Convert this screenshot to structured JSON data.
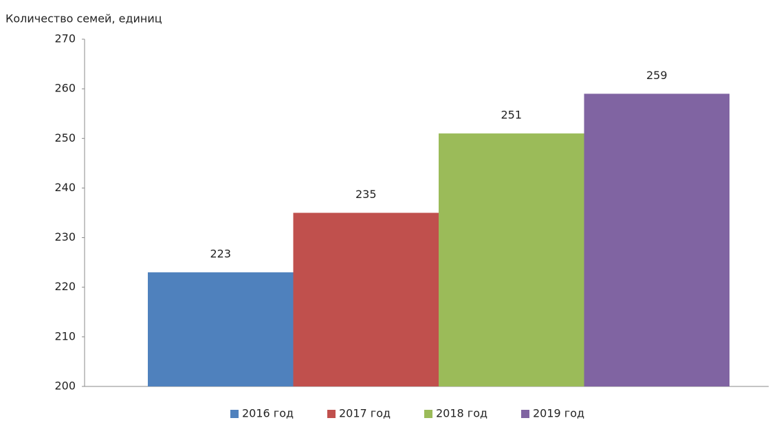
{
  "chart_data": {
    "type": "bar",
    "y_label": "Количество семей, единиц",
    "categories": [
      null
    ],
    "series": [
      {
        "name": "2016 год",
        "color": "#4f81bd",
        "values": [
          223
        ]
      },
      {
        "name": "2017 год",
        "color": "#c0504d",
        "values": [
          235
        ]
      },
      {
        "name": "2018 год",
        "color": "#9bbb59",
        "values": [
          251
        ]
      },
      {
        "name": "2019 год",
        "color": "#8064a2",
        "values": [
          259
        ]
      }
    ],
    "ylim": [
      200,
      270
    ],
    "yticks": [
      200,
      210,
      220,
      230,
      240,
      250,
      260,
      270
    ],
    "grid": false,
    "legend": "bottom"
  }
}
